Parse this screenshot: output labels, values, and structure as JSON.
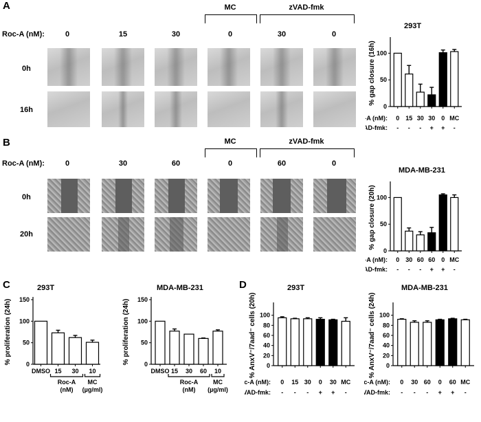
{
  "panels": {
    "A": {
      "letter": "A",
      "roc_label": "Roc-A (nM):",
      "roc_values": [
        "0",
        "15",
        "30",
        "0",
        "30",
        "0"
      ],
      "mc_label": "MC",
      "zvad_label": "zVAD-fmk",
      "rows": [
        "0h",
        "16h"
      ]
    },
    "B": {
      "letter": "B",
      "roc_label": "Roc-A (nM):",
      "roc_values": [
        "0",
        "30",
        "60",
        "0",
        "60",
        "0"
      ],
      "mc_label": "MC",
      "zvad_label": "zVAD-fmk",
      "rows": [
        "0h",
        "20h"
      ]
    },
    "C": {
      "letter": "C"
    },
    "D": {
      "letter": "D"
    }
  },
  "chart_data": [
    {
      "id": "A-bar",
      "type": "bar",
      "title": "293T",
      "ylabel": "% gap closure (16h)",
      "ylim": [
        0,
        125
      ],
      "yticks": [
        "0",
        "50",
        "100"
      ],
      "row1_label": "Roc-A (nM):",
      "row1": [
        "0",
        "15",
        "30",
        "30",
        "0",
        "MC"
      ],
      "row2_label": "zVAD-fmk:",
      "row2": [
        "-",
        "-",
        "-",
        "+",
        "+",
        "-"
      ],
      "values": [
        100,
        61,
        27,
        22,
        101,
        103
      ],
      "errors": [
        0,
        16,
        15,
        14,
        5,
        4
      ],
      "fill": [
        "#ffffff",
        "#ffffff",
        "#ffffff",
        "#000000",
        "#000000",
        "#ffffff"
      ]
    },
    {
      "id": "B-bar",
      "type": "bar",
      "title": "MDA-MB-231",
      "ylabel": "% gap closure (20h)",
      "ylim": [
        0,
        125
      ],
      "yticks": [
        "0",
        "50",
        "100"
      ],
      "row1_label": "Roc-A (nM):",
      "row1": [
        "0",
        "30",
        "60",
        "60",
        "0",
        "MC"
      ],
      "row2_label": "zVAD-fmk:",
      "row2": [
        "-",
        "-",
        "-",
        "+",
        "+",
        "-"
      ],
      "values": [
        100,
        37,
        30,
        34,
        105,
        100
      ],
      "errors": [
        0,
        6,
        6,
        10,
        2,
        5
      ],
      "fill": [
        "#ffffff",
        "#ffffff",
        "#ffffff",
        "#000000",
        "#000000",
        "#ffffff"
      ]
    },
    {
      "id": "C-left",
      "type": "bar",
      "title": "293T",
      "ylabel": "% proliferation (24h)",
      "ylim": [
        0,
        150
      ],
      "yticks": [
        "0",
        "50",
        "100",
        "150"
      ],
      "categories": [
        "DMSO",
        "15",
        "30",
        "10"
      ],
      "groups": [
        {
          "label": "Roc-A (nM)",
          "from": 1,
          "to": 2
        },
        {
          "label": "MC (µg/ml)",
          "from": 3,
          "to": 3
        }
      ],
      "values": [
        100,
        73,
        62,
        51
      ],
      "errors": [
        0,
        6,
        5,
        5
      ],
      "fill": [
        "#ffffff",
        "#ffffff",
        "#ffffff",
        "#ffffff"
      ]
    },
    {
      "id": "C-right",
      "type": "bar",
      "title": "MDA-MB-231",
      "ylabel": "% proliferation (24h)",
      "ylim": [
        0,
        150
      ],
      "yticks": [
        "0",
        "50",
        "100",
        "150"
      ],
      "categories": [
        "DMSO",
        "15",
        "30",
        "60",
        "10"
      ],
      "groups": [
        {
          "label": "Roc-A (nM)",
          "from": 1,
          "to": 3
        },
        {
          "label": "MC (µg/ml)",
          "from": 4,
          "to": 4
        }
      ],
      "values": [
        100,
        77,
        70,
        60,
        77
      ],
      "errors": [
        0,
        5,
        0,
        1,
        3
      ],
      "fill": [
        "#ffffff",
        "#ffffff",
        "#ffffff",
        "#ffffff",
        "#ffffff"
      ]
    },
    {
      "id": "D-left",
      "type": "bar",
      "title": "293T",
      "ylabel": "% AnxV⁻/7aad⁻ cells (20h)",
      "ylim": [
        0,
        120
      ],
      "yticks": [
        "0",
        "20",
        "40",
        "60",
        "80",
        "100"
      ],
      "row1_label": "Roc-A (nM):",
      "row1": [
        "0",
        "15",
        "30",
        "0",
        "30",
        "MC"
      ],
      "row2_label": "zVAD-fmk:",
      "row2": [
        "-",
        "-",
        "-",
        "+",
        "+",
        "-"
      ],
      "values": [
        95,
        93,
        93,
        92,
        91,
        88
      ],
      "errors": [
        2,
        1,
        2,
        3,
        1,
        7
      ],
      "fill": [
        "#ffffff",
        "#ffffff",
        "#ffffff",
        "#000000",
        "#000000",
        "#ffffff"
      ]
    },
    {
      "id": "D-right",
      "type": "bar",
      "title": "MDA-MB-231",
      "ylabel": "% AnxV⁻/7aad⁻ cells (24h)",
      "ylim": [
        0,
        120
      ],
      "yticks": [
        "0",
        "20",
        "40",
        "60",
        "80",
        "100"
      ],
      "row1_label": "Roc-A (nM):",
      "row1": [
        "0",
        "30",
        "60",
        "0",
        "60",
        "MC"
      ],
      "row2_label": "zVAD-fmk:",
      "row2": [
        "-",
        "-",
        "-",
        "+",
        "+",
        "-"
      ],
      "values": [
        92,
        86,
        86,
        91,
        93,
        91
      ],
      "errors": [
        1,
        3,
        3,
        1,
        1,
        1
      ],
      "fill": [
        "#ffffff",
        "#ffffff",
        "#ffffff",
        "#000000",
        "#000000",
        "#ffffff"
      ]
    }
  ]
}
